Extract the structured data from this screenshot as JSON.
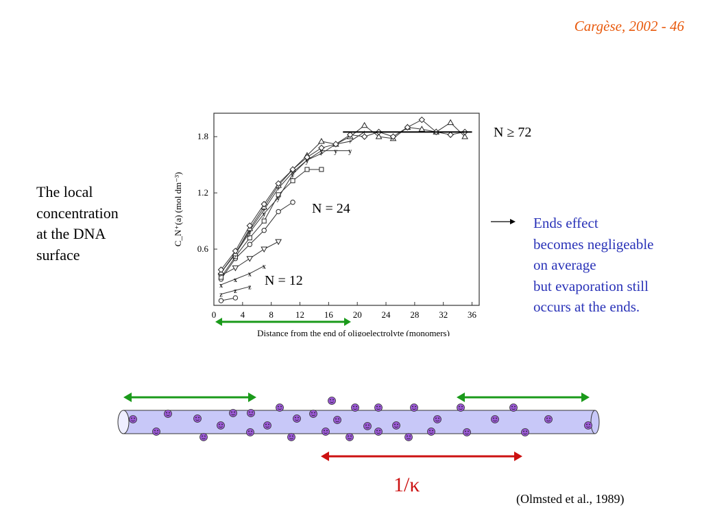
{
  "header": {
    "text": "Cargèse, 2002 - 46",
    "color": "#e8590c"
  },
  "left_text": {
    "lines": [
      "The local",
      "concentration",
      "at the DNA",
      "surface"
    ]
  },
  "note": {
    "color": "#2a33b8",
    "lines": [
      "Ends effect",
      "becomes negligeable",
      "on average",
      "but evaporation still",
      "occurs at the ends."
    ]
  },
  "labels": {
    "n72": "N ≥ 72",
    "n24": "N = 24",
    "n12": "N = 12",
    "kappa": "1/κ",
    "citation": "(Olmsted et al., 1989)"
  },
  "chart_data": {
    "type": "line",
    "xlabel": "Distance from the end of oligoelectrolyte (monomers)",
    "ylabel": "C_N⁺(a) (mol dm⁻³)",
    "x_ticks": [
      "0",
      "4",
      "8",
      "12",
      "16",
      "20",
      "24",
      "28",
      "32",
      "36"
    ],
    "y_ticks": [
      "0.6",
      "1.2",
      "1.8"
    ],
    "xlim": [
      0,
      37
    ],
    "ylim": [
      0.0,
      2.05
    ],
    "series": [
      {
        "name": "o",
        "x": [
          1,
          3
        ],
        "y": [
          0.05,
          0.08
        ]
      },
      {
        "name": "z",
        "x": [
          1,
          3,
          5
        ],
        "y": [
          0.12,
          0.16,
          0.2
        ]
      },
      {
        "name": "x",
        "x": [
          1,
          3,
          5,
          7
        ],
        "y": [
          0.22,
          0.28,
          0.34,
          0.42
        ]
      },
      {
        "name": "∇",
        "x": [
          1,
          3,
          5,
          7,
          9
        ],
        "y": [
          0.32,
          0.4,
          0.5,
          0.6,
          0.68
        ]
      },
      {
        "name": "○",
        "x": [
          1,
          3,
          5,
          7,
          9,
          11
        ],
        "y": [
          0.28,
          0.5,
          0.65,
          0.8,
          1.0,
          1.1
        ]
      },
      {
        "name": "□",
        "x": [
          1,
          3,
          5,
          7,
          9,
          11,
          13,
          15
        ],
        "y": [
          0.3,
          0.52,
          0.72,
          0.9,
          1.18,
          1.33,
          1.45,
          1.45
        ]
      },
      {
        "name": "y",
        "x": [
          1,
          3,
          5,
          7,
          9,
          11,
          13,
          15,
          17,
          19
        ],
        "y": [
          0.35,
          0.55,
          0.78,
          0.98,
          1.15,
          1.4,
          1.55,
          1.65,
          1.65,
          1.65
        ]
      },
      {
        "name": "+",
        "x": [
          1,
          3,
          5,
          7,
          9,
          11,
          13,
          15,
          17,
          19,
          21
        ],
        "y": [
          0.35,
          0.56,
          0.8,
          1.02,
          1.25,
          1.42,
          1.55,
          1.62,
          1.72,
          1.75,
          1.85
        ]
      },
      {
        "name": "△",
        "x": [
          1,
          3,
          5,
          7,
          9,
          11,
          13,
          15,
          17,
          19,
          21,
          23,
          25,
          27,
          29,
          31,
          33,
          35
        ],
        "y": [
          0.35,
          0.55,
          0.82,
          1.05,
          1.28,
          1.45,
          1.6,
          1.75,
          1.72,
          1.8,
          1.92,
          1.8,
          1.78,
          1.9,
          1.88,
          1.85,
          1.95,
          1.8
        ]
      },
      {
        "name": "◇",
        "x": [
          1,
          3,
          5,
          7,
          9,
          11,
          13,
          15,
          17,
          19,
          21,
          23,
          25,
          27,
          29,
          31,
          33,
          35
        ],
        "y": [
          0.38,
          0.58,
          0.85,
          1.08,
          1.3,
          1.45,
          1.58,
          1.68,
          1.72,
          1.82,
          1.8,
          1.85,
          1.8,
          1.9,
          1.98,
          1.85,
          1.82,
          1.85
        ]
      }
    ],
    "fit_line": {
      "x": [
        18,
        36
      ],
      "y": [
        1.85,
        1.85
      ]
    }
  },
  "diagram": {
    "tube_color": "#c8c8f8",
    "counterion_color": "#9b59d6",
    "end_arrow_color": "#1a9a1a",
    "kappa_arrow_color": "#cc1111"
  }
}
